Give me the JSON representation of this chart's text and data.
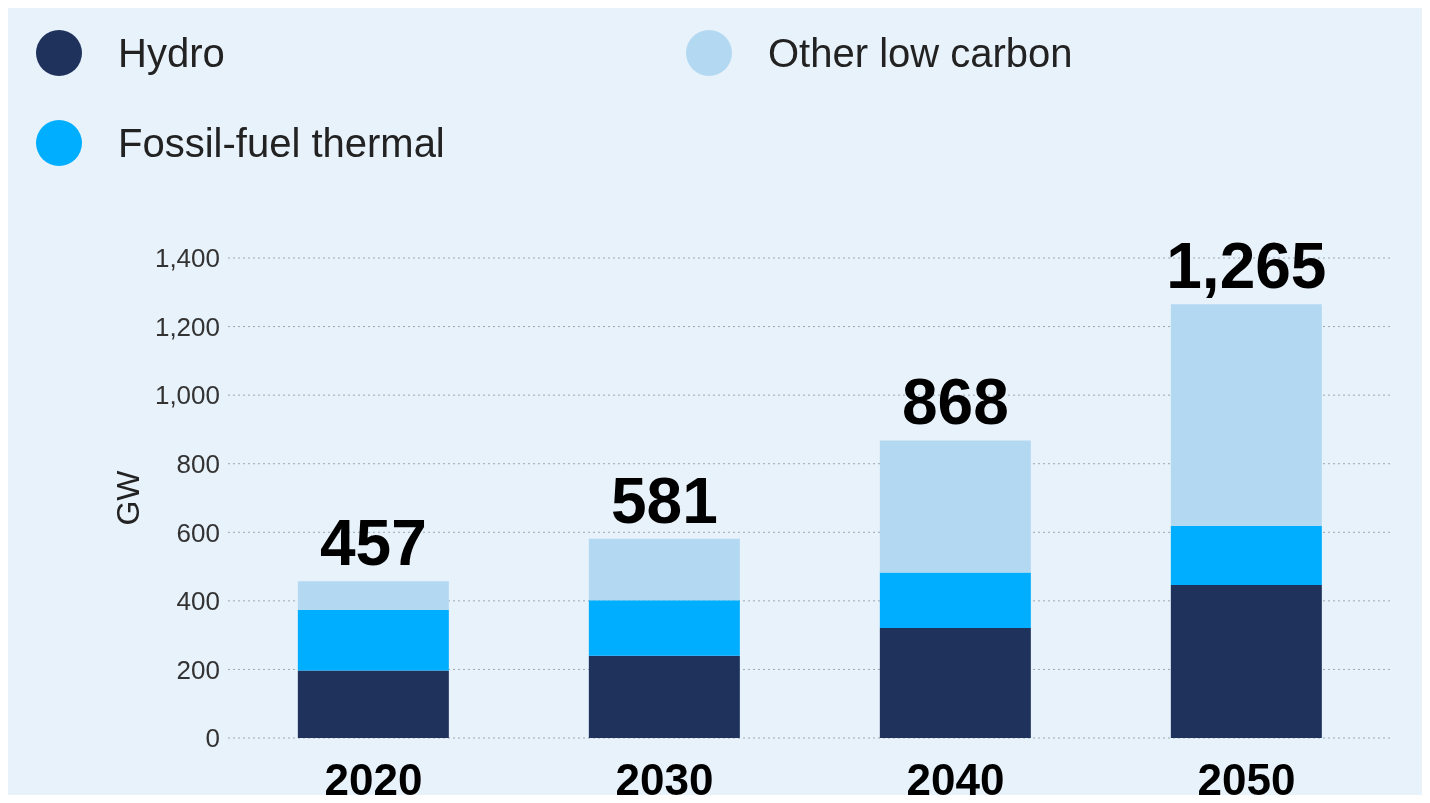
{
  "chart_data": {
    "type": "bar",
    "stacked": true,
    "ylabel": "GW",
    "categories": [
      "2020",
      "2030",
      "2040",
      "2050"
    ],
    "series": [
      {
        "name": "Hydro",
        "color": "#1e325c",
        "values": [
          197,
          240,
          321,
          446
        ]
      },
      {
        "name": "Fossil-fuel thermal",
        "color": "#00aeff",
        "values": [
          176,
          162,
          162,
          173
        ]
      },
      {
        "name": "Other low carbon",
        "color": "#b3d8f2",
        "values": [
          84,
          179,
          385,
          646
        ]
      }
    ],
    "totals": [
      "457",
      "581",
      "868",
      "1,265"
    ],
    "ylim": [
      0,
      1400
    ],
    "yticks": [
      0,
      {
        "value": 200,
        "label": "200"
      },
      {
        "value": 400,
        "label": "400"
      },
      {
        "value": 600,
        "label": "600"
      },
      {
        "value": 800,
        "label": "800"
      },
      {
        "value": 1000,
        "label": "1,000"
      },
      {
        "value": 1200,
        "label": "1,200"
      },
      {
        "value": 1400,
        "label": "1,400"
      }
    ],
    "grid": "y",
    "legend": "top left",
    "marker": "circle"
  }
}
